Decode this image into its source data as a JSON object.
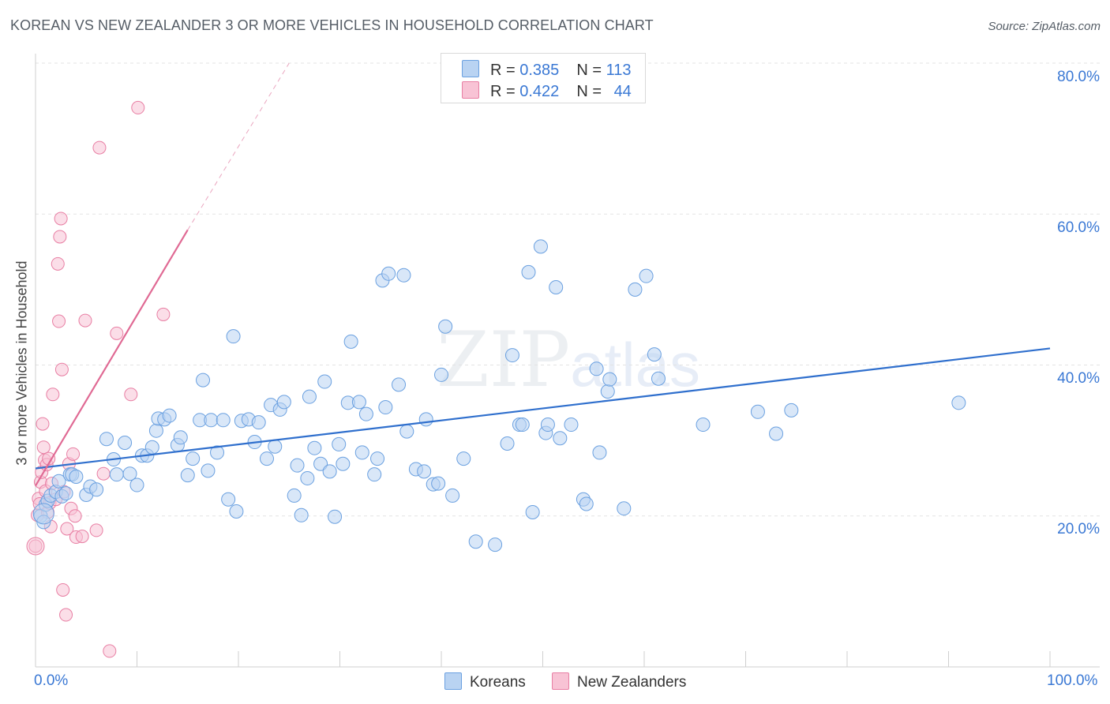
{
  "title": "KOREAN VS NEW ZEALANDER 3 OR MORE VEHICLES IN HOUSEHOLD CORRELATION CHART",
  "source": "Source: ZipAtlas.com",
  "watermark": {
    "zip": "ZIP",
    "atlas": "atlas"
  },
  "legend": {
    "row1": {
      "r_label": "R = ",
      "r_value": "0.385",
      "n_label": "N = ",
      "n_value": "113"
    },
    "row2": {
      "r_label": "R = ",
      "r_value": "0.422",
      "n_label": "N = ",
      "n_value": "44"
    }
  },
  "bottom_legend": {
    "koreans": "Koreans",
    "new_zealanders": "New Zealanders"
  },
  "colors": {
    "korean": "#6aa0e0",
    "korean_fill": "#b9d3f2",
    "nz": "#e87ea3",
    "nz_fill": "#f8c3d5",
    "korean_line": "#2f6fcd",
    "nz_line": "#e06a94",
    "tick_text": "#3a78d4"
  },
  "chart_data": {
    "type": "scatter",
    "xlabel": "",
    "ylabel": "3 or more Vehicles in Household",
    "xlim": [
      0,
      100
    ],
    "ylim": [
      0,
      80
    ],
    "x_tick_labels": [
      "0.0%",
      "100.0%"
    ],
    "y_ticks": [
      20,
      40,
      60,
      80
    ],
    "y_tick_labels": [
      "20.0%",
      "40.0%",
      "60.0%",
      "80.0%"
    ],
    "grid": "horizontal-dashed",
    "legend_position": "top-center",
    "series": [
      {
        "name": "Koreans",
        "R": 0.385,
        "N": 113,
        "trend": {
          "x": [
            0,
            100
          ],
          "y": [
            26.3,
            42.2
          ],
          "dashed_extension": false
        },
        "points": [
          [
            0.5,
            20.0
          ],
          [
            0.8,
            19.2
          ],
          [
            1.0,
            21.5
          ],
          [
            1.2,
            22.0
          ],
          [
            1.5,
            22.7
          ],
          [
            2.0,
            23.2
          ],
          [
            2.3,
            24.6
          ],
          [
            2.6,
            22.6
          ],
          [
            3.0,
            23.0
          ],
          [
            3.4,
            25.5
          ],
          [
            3.6,
            25.5
          ],
          [
            4.0,
            25.2
          ],
          [
            5.0,
            22.8
          ],
          [
            5.4,
            23.9
          ],
          [
            6.0,
            23.5
          ],
          [
            7.0,
            30.2
          ],
          [
            7.7,
            27.5
          ],
          [
            8.0,
            25.5
          ],
          [
            8.8,
            29.7
          ],
          [
            9.3,
            25.6
          ],
          [
            10.0,
            24.1
          ],
          [
            10.5,
            28.0
          ],
          [
            11.0,
            28.0
          ],
          [
            11.5,
            29.1
          ],
          [
            11.9,
            31.3
          ],
          [
            12.1,
            32.9
          ],
          [
            12.7,
            32.8
          ],
          [
            13.2,
            33.3
          ],
          [
            14.0,
            29.4
          ],
          [
            14.3,
            30.4
          ],
          [
            15.0,
            25.4
          ],
          [
            15.5,
            27.6
          ],
          [
            16.2,
            32.7
          ],
          [
            16.5,
            38.0
          ],
          [
            17.0,
            26.0
          ],
          [
            17.3,
            32.7
          ],
          [
            17.9,
            28.4
          ],
          [
            18.5,
            32.7
          ],
          [
            19.0,
            22.2
          ],
          [
            19.5,
            43.8
          ],
          [
            19.8,
            20.6
          ],
          [
            20.3,
            32.6
          ],
          [
            21.0,
            32.8
          ],
          [
            21.6,
            29.8
          ],
          [
            22.0,
            32.4
          ],
          [
            22.8,
            27.6
          ],
          [
            23.2,
            34.7
          ],
          [
            23.6,
            29.2
          ],
          [
            24.1,
            34.1
          ],
          [
            24.5,
            35.1
          ],
          [
            25.5,
            22.7
          ],
          [
            25.8,
            26.7
          ],
          [
            26.2,
            20.1
          ],
          [
            26.8,
            25.0
          ],
          [
            27.0,
            35.8
          ],
          [
            27.5,
            29.0
          ],
          [
            28.1,
            26.9
          ],
          [
            28.5,
            37.8
          ],
          [
            29.0,
            25.9
          ],
          [
            29.5,
            19.9
          ],
          [
            29.9,
            29.5
          ],
          [
            30.3,
            26.9
          ],
          [
            30.8,
            35.0
          ],
          [
            31.1,
            43.1
          ],
          [
            31.9,
            35.1
          ],
          [
            32.2,
            28.4
          ],
          [
            32.6,
            33.5
          ],
          [
            33.4,
            25.5
          ],
          [
            33.7,
            27.6
          ],
          [
            34.2,
            51.2
          ],
          [
            34.5,
            34.4
          ],
          [
            34.8,
            52.1
          ],
          [
            35.8,
            37.4
          ],
          [
            36.3,
            51.9
          ],
          [
            36.6,
            31.2
          ],
          [
            37.5,
            26.2
          ],
          [
            38.3,
            25.9
          ],
          [
            38.5,
            32.8
          ],
          [
            39.2,
            24.2
          ],
          [
            39.7,
            24.3
          ],
          [
            40.0,
            38.7
          ],
          [
            40.4,
            45.1
          ],
          [
            41.1,
            22.7
          ],
          [
            42.2,
            27.6
          ],
          [
            43.4,
            16.6
          ],
          [
            45.3,
            16.2
          ],
          [
            46.5,
            29.6
          ],
          [
            47.0,
            41.3
          ],
          [
            47.7,
            32.1
          ],
          [
            48.0,
            32.1
          ],
          [
            48.6,
            52.3
          ],
          [
            49.0,
            20.5
          ],
          [
            49.8,
            55.7
          ],
          [
            50.3,
            31.0
          ],
          [
            50.5,
            32.1
          ],
          [
            51.3,
            50.3
          ],
          [
            51.7,
            30.3
          ],
          [
            52.8,
            32.1
          ],
          [
            54.0,
            22.2
          ],
          [
            54.3,
            21.6
          ],
          [
            55.3,
            39.5
          ],
          [
            55.6,
            28.4
          ],
          [
            56.4,
            36.5
          ],
          [
            56.6,
            38.1
          ],
          [
            58.0,
            21.0
          ],
          [
            59.1,
            50.0
          ],
          [
            60.2,
            51.8
          ],
          [
            61.0,
            41.4
          ],
          [
            61.4,
            38.2
          ],
          [
            65.8,
            32.1
          ],
          [
            71.2,
            33.8
          ],
          [
            73.0,
            30.9
          ],
          [
            74.5,
            34.0
          ],
          [
            91.0,
            35.0
          ]
        ]
      },
      {
        "name": "New Zealanders",
        "R": 0.422,
        "N": 44,
        "trend": {
          "x": [
            0,
            15.0
          ],
          "y": [
            24.0,
            57.9
          ],
          "dashed_to": [
            25.0,
            80.0
          ]
        },
        "points": [
          [
            0.0,
            16.0
          ],
          [
            0.2,
            20.1
          ],
          [
            0.3,
            22.3
          ],
          [
            0.4,
            21.6
          ],
          [
            0.5,
            24.5
          ],
          [
            0.6,
            25.8
          ],
          [
            0.7,
            32.2
          ],
          [
            0.8,
            29.1
          ],
          [
            0.9,
            27.4
          ],
          [
            1.0,
            23.3
          ],
          [
            1.1,
            26.8
          ],
          [
            1.2,
            20.5
          ],
          [
            1.3,
            27.6
          ],
          [
            1.4,
            21.7
          ],
          [
            1.5,
            18.6
          ],
          [
            1.6,
            24.3
          ],
          [
            1.7,
            36.1
          ],
          [
            2.0,
            22.2
          ],
          [
            2.2,
            53.4
          ],
          [
            2.3,
            45.8
          ],
          [
            2.4,
            57.0
          ],
          [
            2.5,
            59.4
          ],
          [
            2.6,
            39.4
          ],
          [
            2.7,
            10.2
          ],
          [
            2.8,
            23.2
          ],
          [
            3.0,
            6.9
          ],
          [
            3.1,
            18.3
          ],
          [
            3.3,
            26.9
          ],
          [
            3.5,
            21.0
          ],
          [
            3.7,
            28.2
          ],
          [
            3.9,
            20.0
          ],
          [
            4.0,
            17.2
          ],
          [
            4.6,
            17.3
          ],
          [
            4.9,
            45.9
          ],
          [
            6.0,
            18.1
          ],
          [
            6.3,
            68.8
          ],
          [
            6.7,
            25.6
          ],
          [
            7.3,
            2.1
          ],
          [
            8.0,
            44.2
          ],
          [
            9.4,
            36.1
          ],
          [
            10.1,
            74.1
          ],
          [
            12.6,
            46.7
          ]
        ]
      }
    ]
  }
}
